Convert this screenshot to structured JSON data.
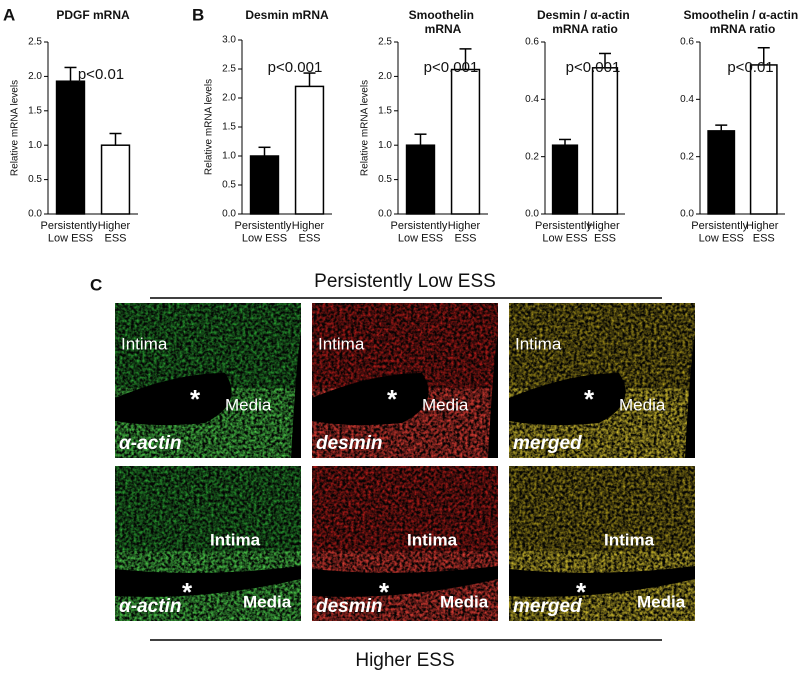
{
  "chart_data": [
    {
      "type": "bar",
      "panel": "A",
      "title": "PDGF mRNA",
      "y_label": "Relative mRNA levels",
      "annotation": "p<0.01",
      "categories": [
        "Persistently Low ESS",
        "Higher ESS"
      ],
      "values": [
        1.93,
        1.0
      ],
      "errors": [
        0.2,
        0.17
      ],
      "colors": [
        "#000000",
        "#ffffff"
      ],
      "ylim": [
        0,
        2.5
      ],
      "yticks": [
        {
          "value": 0,
          "label": "0.0"
        },
        0.5,
        {
          "value": 1,
          "label": "1.0"
        },
        1.5,
        {
          "value": 2,
          "label": "2.0"
        },
        2.5
      ]
    },
    {
      "type": "bar",
      "panel": "B",
      "title": "Desmin mRNA",
      "y_label": "Relative mRNA levels",
      "annotation": "p<0.001",
      "categories": [
        "Persistently Low ESS",
        "Higher ESS"
      ],
      "values": [
        1.0,
        2.2
      ],
      "errors": [
        0.15,
        0.23
      ],
      "colors": [
        "#000000",
        "#ffffff"
      ],
      "ylim": [
        0,
        3
      ],
      "yticks": [
        {
          "value": 0,
          "label": "0.0"
        },
        0.5,
        {
          "value": 1,
          "label": "1.0"
        },
        1.5,
        {
          "value": 2,
          "label": "2.0"
        },
        2.5,
        {
          "value": 3,
          "label": "3.0"
        }
      ]
    },
    {
      "type": "bar",
      "title": "Smoothelin mRNA",
      "y_label": "Relative mRNA levels",
      "annotation": "p<0.001",
      "categories": [
        "Persistently Low ESS",
        "Higher ESS"
      ],
      "values": [
        1.0,
        2.1
      ],
      "errors": [
        0.16,
        0.3
      ],
      "colors": [
        "#000000",
        "#ffffff"
      ],
      "ylim": [
        0,
        2.5
      ],
      "yticks": [
        {
          "value": 0,
          "label": "0.0"
        },
        0.5,
        {
          "value": 1,
          "label": "1.0"
        },
        1.5,
        {
          "value": 2,
          "label": "2.0"
        },
        2.5
      ]
    },
    {
      "type": "bar",
      "title": "Desmin / α-actin mRNA ratio",
      "annotation": "p<0.001",
      "categories": [
        "Persistently Low ESS",
        "Higher ESS"
      ],
      "values": [
        0.24,
        0.51
      ],
      "errors": [
        0.02,
        0.05
      ],
      "colors": [
        "#000000",
        "#ffffff"
      ],
      "ylim": [
        0,
        0.6
      ],
      "yticks": [
        {
          "value": 0,
          "label": "0.0"
        },
        0.2,
        0.4,
        0.6
      ]
    },
    {
      "type": "bar",
      "title": "Smoothelin / α-actin mRNA ratio",
      "annotation": "p<0.01",
      "categories": [
        "Persistently Low ESS",
        "Higher ESS"
      ],
      "values": [
        0.29,
        0.52
      ],
      "errors": [
        0.02,
        0.06
      ],
      "colors": [
        "#000000",
        "#ffffff"
      ],
      "ylim": [
        0,
        0.6
      ],
      "yticks": [
        {
          "value": 0,
          "label": "0.0"
        },
        0.2,
        0.4,
        0.6
      ]
    }
  ],
  "panel_c": {
    "label": "C",
    "top_title": "Persistently Low ESS",
    "bottom_title": "Higher ESS",
    "rows": [
      {
        "images": [
          {
            "stain": "α-actin",
            "intima": "Intima",
            "media": "Media",
            "lumen": "*"
          },
          {
            "stain": "desmin",
            "intima": "Intima",
            "media": "Media",
            "lumen": "*"
          },
          {
            "stain": "merged",
            "intima": "Intima",
            "media": "Media",
            "lumen": "*"
          }
        ]
      },
      {
        "images": [
          {
            "stain": "α-actin",
            "intima": "Intima",
            "media": "Media",
            "lumen": "*"
          },
          {
            "stain": "desmin",
            "intima": "Intima",
            "media": "Media",
            "lumen": "*"
          },
          {
            "stain": "merged",
            "intima": "Intima",
            "media": "Media",
            "lumen": "*"
          }
        ]
      }
    ]
  }
}
